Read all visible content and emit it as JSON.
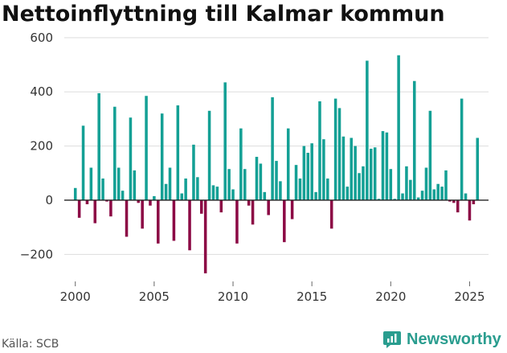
{
  "title": "Nettoinflyttning till Kalmar kommun",
  "source": "Källa: SCB",
  "brand": "Newsworthy",
  "colors": {
    "positive": "#14a095",
    "negative": "#8c0a45",
    "grid": "#dddddd",
    "zero": "#222222",
    "brand": "#2a9d8f"
  },
  "chart_data": {
    "type": "bar",
    "title": "Nettoinflyttning till Kalmar kommun",
    "xlabel": "",
    "ylabel": "",
    "ylim": [
      -300,
      650
    ],
    "yticks": [
      -200,
      0,
      200,
      400,
      600
    ],
    "ytick_labels": [
      "−200",
      "0",
      "200",
      "400",
      "600"
    ],
    "xticks": [
      2000,
      2005,
      2010,
      2015,
      2020,
      2025
    ],
    "xtick_labels": [
      "2000",
      "2005",
      "2010",
      "2015",
      "2020",
      "2025"
    ],
    "xlim": [
      1999.3,
      2026.2
    ],
    "start_year": 2000,
    "periods_per_year": 4,
    "values": [
      45,
      -65,
      275,
      -15,
      120,
      -85,
      395,
      80,
      -5,
      -60,
      345,
      120,
      35,
      -135,
      305,
      110,
      -10,
      -105,
      385,
      -20,
      15,
      -160,
      320,
      60,
      120,
      -150,
      350,
      25,
      80,
      -185,
      205,
      85,
      -50,
      -270,
      330,
      55,
      50,
      -45,
      435,
      115,
      40,
      -160,
      265,
      115,
      -20,
      -90,
      160,
      135,
      30,
      -55,
      380,
      145,
      70,
      -155,
      265,
      -70,
      130,
      80,
      200,
      175,
      210,
      30,
      365,
      225,
      80,
      -105,
      375,
      340,
      235,
      50,
      230,
      200,
      100,
      125,
      515,
      190,
      195,
      5,
      255,
      250,
      115,
      5,
      535,
      25,
      125,
      75,
      440,
      10,
      35,
      120,
      330,
      40,
      60,
      50,
      110,
      -5,
      -10,
      -45,
      375,
      25,
      -75,
      -15,
      230
    ]
  }
}
